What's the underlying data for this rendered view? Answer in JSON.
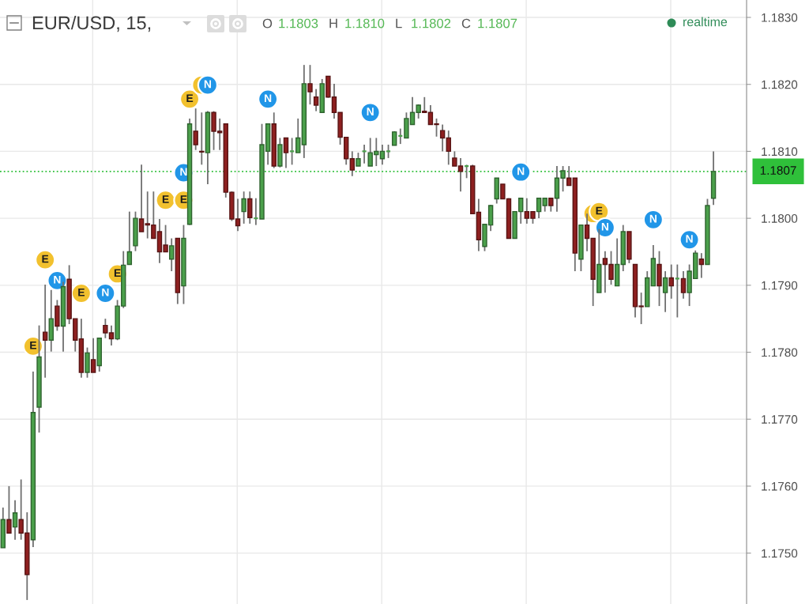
{
  "chart_data": {
    "type": "candlestick",
    "title": "EUR/USD, 15,",
    "categories": [
      null,
      null,
      null,
      null,
      null,
      null,
      null,
      null,
      null,
      null,
      null,
      null,
      null,
      null,
      null,
      null,
      null,
      null,
      null,
      null,
      null,
      null,
      null,
      null,
      null,
      null,
      null,
      null,
      null,
      null,
      null,
      null,
      null,
      null,
      null,
      null,
      null,
      null,
      null,
      null,
      null,
      null,
      null,
      null,
      null,
      null,
      null,
      null,
      null,
      null,
      null,
      null,
      null,
      null,
      null,
      null,
      null,
      null,
      null,
      null,
      null,
      null,
      null,
      null,
      null,
      null,
      null,
      null,
      null,
      null,
      null,
      null,
      null,
      null,
      null,
      null,
      null,
      null,
      null,
      null,
      null,
      null,
      null,
      null,
      null,
      null,
      null,
      null,
      null,
      null,
      null,
      null,
      null,
      null,
      null,
      null,
      null,
      null,
      null,
      null,
      null,
      null,
      null,
      null,
      null,
      null,
      null,
      null,
      null,
      null,
      null,
      null,
      null,
      null,
      null,
      null,
      null,
      null,
      null,
      null,
      null,
      null,
      null,
      null
    ],
    "ohlc": [
      [
        1.17508,
        1.17568,
        1.17508,
        1.1755
      ],
      [
        1.1755,
        1.176,
        1.1753,
        1.1753
      ],
      [
        1.17539,
        1.17579,
        1.1752,
        1.1756
      ],
      [
        1.1755,
        1.1761,
        1.1752,
        1.1753
      ],
      [
        1.1753,
        1.17561,
        1.1743,
        1.17468
      ],
      [
        1.1752,
        1.17771,
        1.17509,
        1.1771
      ],
      [
        1.17718,
        1.1784,
        1.1768,
        1.17793
      ],
      [
        1.1783,
        1.17901,
        1.17762,
        1.17818
      ],
      [
        1.17818,
        1.17893,
        1.17801,
        1.1785
      ],
      [
        1.17869,
        1.17878,
        1.17832,
        1.17839
      ],
      [
        1.17839,
        1.17905,
        1.17801,
        1.17898
      ],
      [
        1.17909,
        1.1793,
        1.17842,
        1.1785
      ],
      [
        1.1785,
        1.1785,
        1.17801,
        1.17818
      ],
      [
        1.1782,
        1.1785,
        1.17762,
        1.1777
      ],
      [
        1.1777,
        1.17807,
        1.17762,
        1.17799
      ],
      [
        1.17789,
        1.17821,
        1.1777,
        1.1777
      ],
      [
        1.1778,
        1.17821,
        1.17771,
        1.17821
      ],
      [
        1.1784,
        1.1785,
        1.17821,
        1.17829
      ],
      [
        1.17829,
        1.1784,
        1.1781,
        1.1782
      ],
      [
        1.1782,
        1.17878,
        1.17818,
        1.17869
      ],
      [
        1.17869,
        1.17951,
        1.17866,
        1.1793
      ],
      [
        1.17931,
        1.1801,
        1.17931,
        1.1795
      ],
      [
        1.17959,
        1.1801,
        1.17951,
        1.18
      ],
      [
        1.17999,
        1.1808,
        1.1798,
        1.1798
      ],
      [
        1.17992,
        1.1804,
        1.1797,
        1.1799
      ],
      [
        1.1799,
        1.1804,
        1.1797,
        1.1797
      ],
      [
        1.1798,
        1.17999,
        1.17933,
        1.1795
      ],
      [
        1.1796,
        1.1799,
        1.1795,
        1.1795
      ],
      [
        1.17939,
        1.1797,
        1.17921,
        1.17959
      ],
      [
        1.1797,
        1.1797,
        1.17872,
        1.17889
      ],
      [
        1.17899,
        1.1799,
        1.17872,
        1.1797
      ],
      [
        1.17991,
        1.18149,
        1.1799,
        1.18141
      ],
      [
        1.1813,
        1.18164,
        1.18102,
        1.1811
      ],
      [
        1.181,
        1.18158,
        1.1808,
        1.18099
      ],
      [
        1.18098,
        1.1816,
        1.18051,
        1.18158
      ],
      [
        1.18158,
        1.1816,
        1.18102,
        1.1813
      ],
      [
        1.1813,
        1.18149,
        1.18102,
        1.18128
      ],
      [
        1.18141,
        1.18141,
        1.18031,
        1.18039
      ],
      [
        1.18039,
        1.1804,
        1.17996,
        1.17999
      ],
      [
        1.17999,
        1.18029,
        1.17981,
        1.17989
      ],
      [
        1.1801,
        1.1804,
        1.17992,
        1.18029
      ],
      [
        1.18029,
        1.1804,
        1.17992,
        1.18001
      ],
      [
        1.18,
        1.1803,
        1.1799,
        1.18
      ],
      [
        1.17999,
        1.18141,
        1.17999,
        1.1811
      ],
      [
        1.181,
        1.18141,
        1.1808,
        1.18141
      ],
      [
        1.18141,
        1.18158,
        1.18075,
        1.18078
      ],
      [
        1.18078,
        1.1812,
        1.18076,
        1.1811
      ],
      [
        1.1812,
        1.1812,
        1.18075,
        1.18098
      ],
      [
        1.181,
        1.1812,
        1.1808,
        1.181
      ],
      [
        1.18098,
        1.18149,
        1.18098,
        1.1812
      ],
      [
        1.1811,
        1.18229,
        1.1809,
        1.18201
      ],
      [
        1.18201,
        1.18229,
        1.1817,
        1.18189
      ],
      [
        1.18181,
        1.18193,
        1.1816,
        1.18169
      ],
      [
        1.18158,
        1.18208,
        1.18158,
        1.18201
      ],
      [
        1.18212,
        1.18212,
        1.1818,
        1.18181
      ],
      [
        1.18181,
        1.18201,
        1.18149,
        1.18158
      ],
      [
        1.18158,
        1.18158,
        1.1811,
        1.18121
      ],
      [
        1.18121,
        1.18121,
        1.1808,
        1.18089
      ],
      [
        1.18089,
        1.181,
        1.18063,
        1.18072
      ],
      [
        1.18078,
        1.18098,
        1.18078,
        1.18089
      ],
      [
        1.181,
        1.1811,
        1.18082,
        1.181
      ],
      [
        1.18078,
        1.1812,
        1.18078,
        1.18098
      ],
      [
        1.18095,
        1.1812,
        1.18078,
        1.181
      ],
      [
        1.18089,
        1.1811,
        1.1808,
        1.181
      ],
      [
        1.181,
        1.1811,
        1.1809,
        1.181
      ],
      [
        1.18109,
        1.1813,
        1.18109,
        1.18129
      ],
      [
        1.18123,
        1.18134,
        1.18111,
        1.18123
      ],
      [
        1.1812,
        1.18158,
        1.1812,
        1.18149
      ],
      [
        1.1814,
        1.18181,
        1.1814,
        1.18158
      ],
      [
        1.18158,
        1.1817,
        1.18149,
        1.18169
      ],
      [
        1.1816,
        1.18181,
        1.18158,
        1.18158
      ],
      [
        1.18158,
        1.18169,
        1.1814,
        1.1814
      ],
      [
        1.18141,
        1.18149,
        1.18122,
        1.1814
      ],
      [
        1.18131,
        1.1814,
        1.181,
        1.1812
      ],
      [
        1.1812,
        1.18131,
        1.1808,
        1.181
      ],
      [
        1.1809,
        1.181,
        1.18078,
        1.18078
      ],
      [
        1.18078,
        1.1809,
        1.1804,
        1.1807
      ],
      [
        1.18078,
        1.1808,
        1.1806,
        1.18078
      ],
      [
        1.18078,
        1.1808,
        1.18007,
        1.18007
      ],
      [
        1.18009,
        1.18029,
        1.17951,
        1.17968
      ],
      [
        1.17958,
        1.17991,
        1.17951,
        1.17991
      ],
      [
        1.1799,
        1.1802,
        1.17981,
        1.18019
      ],
      [
        1.18029,
        1.1806,
        1.18022,
        1.1806
      ],
      [
        1.18051,
        1.18051,
        1.18029,
        1.18029
      ],
      [
        1.18029,
        1.1803,
        1.1797,
        1.1797
      ],
      [
        1.1797,
        1.1801,
        1.1797,
        1.1801
      ],
      [
        1.1801,
        1.1803,
        1.17992,
        1.1803
      ],
      [
        1.1801,
        1.1803,
        1.17992,
        1.18
      ],
      [
        1.1801,
        1.1801,
        1.17992,
        1.18
      ],
      [
        1.1801,
        1.1803,
        1.18,
        1.1803
      ],
      [
        1.18019,
        1.1803,
        1.1801,
        1.1803
      ],
      [
        1.1803,
        1.1803,
        1.1801,
        1.18019
      ],
      [
        1.1803,
        1.18078,
        1.1801,
        1.1806
      ],
      [
        1.1806,
        1.18078,
        1.1804,
        1.18071
      ],
      [
        1.1806,
        1.18078,
        1.18049,
        1.18049
      ],
      [
        1.1806,
        1.1806,
        1.17921,
        1.17948
      ],
      [
        1.17939,
        1.1799,
        1.17921,
        1.1799
      ],
      [
        1.1799,
        1.18007,
        1.17951,
        1.1797
      ],
      [
        1.1797,
        1.1797,
        1.17869,
        1.17909
      ],
      [
        1.17889,
        1.17984,
        1.17889,
        1.17931
      ],
      [
        1.1794,
        1.17951,
        1.17889,
        1.17931
      ],
      [
        1.17931,
        1.17951,
        1.17901,
        1.17909
      ],
      [
        1.17899,
        1.1797,
        1.17899,
        1.17931
      ],
      [
        1.17931,
        1.1799,
        1.17921,
        1.1798
      ],
      [
        1.1798,
        1.1798,
        1.17933,
        1.17939
      ],
      [
        1.17931,
        1.17931,
        1.17852,
        1.17868
      ],
      [
        1.17869,
        1.17889,
        1.17842,
        1.17868
      ],
      [
        1.17868,
        1.17921,
        1.17868,
        1.17911
      ],
      [
        1.17899,
        1.1796,
        1.17899,
        1.1794
      ],
      [
        1.17931,
        1.17951,
        1.17869,
        1.17899
      ],
      [
        1.17889,
        1.17921,
        1.1786,
        1.17911
      ],
      [
        1.17911,
        1.17931,
        1.1788,
        1.17899
      ],
      [
        1.1791,
        1.17931,
        1.17852,
        1.1791
      ],
      [
        1.1791,
        1.17921,
        1.1788,
        1.17889
      ],
      [
        1.17889,
        1.17931,
        1.17869,
        1.17921
      ],
      [
        1.1791,
        1.17952,
        1.1791,
        1.17948
      ],
      [
        1.17939,
        1.17948,
        1.17911,
        1.17931
      ],
      [
        1.17931,
        1.18029,
        1.17931,
        1.18019
      ],
      [
        1.1803,
        1.181,
        1.1802,
        1.1807
      ],
      null,
      null,
      null,
      null,
      null
    ],
    "colors": [
      "#4ba04b",
      "#8e2020",
      "#4ba04b",
      "#8e2020",
      "#8e2020",
      "#4ba04b",
      "#4ba04b",
      "#8e2020",
      "#4ba04b",
      "#8e2020",
      "#4ba04b",
      "#8e2020",
      "#8e2020",
      "#8e2020",
      "#4ba04b",
      "#8e2020",
      "#4ba04b",
      "#8e2020",
      "#8e2020",
      "#4ba04b",
      "#4ba04b",
      "#4ba04b",
      "#4ba04b",
      "#8e2020",
      "#8e2020",
      "#8e2020",
      "#8e2020",
      "#8e2020",
      "#4ba04b",
      "#8e2020",
      "#4ba04b",
      "#4ba04b",
      "#8e2020",
      "#8e2020",
      "#4ba04b",
      "#8e2020",
      "#8e2020",
      "#8e2020",
      "#8e2020",
      "#8e2020",
      "#4ba04b",
      "#8e2020",
      "#4ba04b",
      "#4ba04b",
      "#4ba04b",
      "#8e2020",
      "#4ba04b",
      "#8e2020",
      "#4ba04b",
      "#4ba04b",
      "#4ba04b",
      "#8e2020",
      "#8e2020",
      "#4ba04b",
      "#8e2020",
      "#8e2020",
      "#8e2020",
      "#8e2020",
      "#8e2020",
      "#4ba04b",
      "#4ba04b",
      "#4ba04b",
      "#4ba04b",
      "#4ba04b",
      "#4ba04b",
      "#4ba04b",
      "#4ba04b",
      "#4ba04b",
      "#4ba04b",
      "#4ba04b",
      "#8e2020",
      "#8e2020",
      "#8e2020",
      "#8e2020",
      "#8e2020",
      "#8e2020",
      "#8e2020",
      "#4ba04b",
      "#8e2020",
      "#8e2020",
      "#4ba04b",
      "#4ba04b",
      "#4ba04b",
      "#8e2020",
      "#8e2020",
      "#4ba04b",
      "#4ba04b",
      "#8e2020",
      "#8e2020",
      "#4ba04b",
      "#4ba04b",
      "#8e2020",
      "#4ba04b",
      "#4ba04b",
      "#8e2020",
      "#8e2020",
      "#4ba04b",
      "#8e2020",
      "#8e2020",
      "#4ba04b",
      "#8e2020",
      "#8e2020",
      "#4ba04b",
      "#4ba04b",
      "#8e2020",
      "#8e2020",
      "#8e2020",
      "#4ba04b",
      "#4ba04b",
      "#8e2020",
      "#4ba04b",
      "#8e2020",
      "#4ba04b",
      "#8e2020",
      "#4ba04b",
      "#4ba04b",
      "#8e2020",
      "#4ba04b",
      "#4ba04b",
      null,
      null,
      null,
      null,
      null
    ],
    "series": [
      {
        "type": "scatter",
        "color": "#f2c12e",
        "values": [
          null,
          null,
          null,
          null,
          null,
          1.17809,
          null,
          1.17938,
          null,
          null,
          null,
          null,
          null,
          1.17888,
          null,
          null,
          null,
          null,
          null,
          1.17917,
          null,
          null,
          null,
          null,
          null,
          null,
          null,
          1.18027,
          null,
          null,
          1.18027,
          1.18178,
          null,
          1.18199,
          null,
          null,
          null,
          null,
          null,
          null,
          null,
          null,
          null,
          null,
          null,
          null,
          null,
          null,
          null,
          null,
          null,
          null,
          null,
          null,
          null,
          null,
          null,
          null,
          null,
          null,
          null,
          null,
          null,
          null,
          null,
          null,
          null,
          null,
          null,
          null,
          null,
          null,
          null,
          null,
          null,
          null,
          null,
          null,
          null,
          null,
          null,
          null,
          null,
          null,
          null,
          null,
          null,
          null,
          null,
          null,
          null,
          null,
          null,
          null,
          null,
          null,
          null,
          null,
          1.18007,
          1.1801,
          null,
          null,
          null,
          null,
          null,
          null,
          null,
          null,
          null,
          null,
          null,
          null,
          null,
          null,
          null,
          null,
          null,
          null,
          null,
          null,
          null,
          null,
          null,
          null
        ],
        "value_labels": [
          null,
          null,
          null,
          null,
          null,
          "E",
          null,
          "E",
          null,
          null,
          null,
          null,
          null,
          "E",
          null,
          null,
          null,
          null,
          null,
          "E",
          null,
          null,
          null,
          null,
          null,
          null,
          null,
          "E",
          null,
          null,
          "E",
          "E",
          null,
          null,
          null,
          null,
          null,
          null,
          null,
          null,
          null,
          null,
          null,
          null,
          null,
          null,
          null,
          null,
          null,
          null,
          null,
          null,
          null,
          null,
          null,
          null,
          null,
          null,
          null,
          null,
          null,
          null,
          null,
          null,
          null,
          null,
          null,
          null,
          null,
          null,
          null,
          null,
          null,
          null,
          null,
          null,
          null,
          null,
          null,
          null,
          null,
          null,
          null,
          null,
          null,
          null,
          null,
          null,
          null,
          null,
          null,
          null,
          null,
          null,
          null,
          null,
          null,
          null,
          null,
          "E",
          null,
          null,
          null,
          null,
          null,
          null,
          null,
          null,
          null,
          null,
          null,
          null,
          null,
          null,
          null,
          null,
          null,
          null,
          null,
          null,
          null,
          null,
          null,
          null
        ]
      },
      {
        "type": "scatter",
        "color": "#2196e8",
        "values": [
          null,
          null,
          null,
          null,
          null,
          null,
          null,
          null,
          null,
          1.17907,
          null,
          null,
          null,
          null,
          null,
          null,
          null,
          1.17888,
          null,
          null,
          null,
          null,
          null,
          null,
          null,
          null,
          null,
          null,
          null,
          null,
          1.18068,
          null,
          null,
          null,
          1.18199,
          null,
          null,
          null,
          null,
          null,
          null,
          null,
          null,
          null,
          1.18178,
          null,
          null,
          null,
          null,
          null,
          null,
          null,
          null,
          null,
          null,
          null,
          null,
          null,
          null,
          null,
          null,
          1.18158,
          null,
          null,
          null,
          null,
          null,
          null,
          null,
          null,
          null,
          null,
          null,
          null,
          null,
          null,
          null,
          null,
          null,
          null,
          null,
          null,
          null,
          null,
          null,
          null,
          1.18069,
          null,
          null,
          null,
          null,
          null,
          null,
          null,
          null,
          null,
          null,
          null,
          null,
          null,
          1.17986,
          null,
          null,
          null,
          null,
          null,
          null,
          null,
          1.17998,
          null,
          null,
          null,
          null,
          null,
          1.17968,
          null,
          null,
          null,
          null,
          null,
          null,
          null,
          null,
          null
        ],
        "value_labels": [
          null,
          null,
          null,
          null,
          null,
          null,
          null,
          null,
          null,
          "N",
          null,
          null,
          null,
          null,
          null,
          null,
          null,
          "N",
          null,
          null,
          null,
          null,
          null,
          null,
          null,
          null,
          null,
          null,
          null,
          null,
          "N",
          null,
          null,
          null,
          "N",
          null,
          null,
          null,
          null,
          null,
          null,
          null,
          null,
          null,
          "N",
          null,
          null,
          null,
          null,
          null,
          null,
          null,
          null,
          null,
          null,
          null,
          null,
          null,
          null,
          null,
          null,
          "N",
          null,
          null,
          null,
          null,
          null,
          null,
          null,
          null,
          null,
          null,
          null,
          null,
          null,
          null,
          null,
          null,
          null,
          null,
          null,
          null,
          null,
          null,
          null,
          null,
          "N",
          null,
          null,
          null,
          null,
          null,
          null,
          null,
          null,
          null,
          null,
          null,
          null,
          null,
          "N",
          null,
          null,
          null,
          null,
          null,
          null,
          null,
          "N",
          null,
          null,
          null,
          null,
          null,
          "N",
          null,
          null,
          null,
          null,
          null,
          null,
          null,
          null,
          null
        ]
      }
    ],
    "marker": "circle",
    "ylim": [
      1.17424,
      1.18326
    ],
    "yticks": [
      {
        "value": 1.175,
        "label": "1.1750"
      },
      {
        "value": 1.176,
        "label": "1.1760"
      },
      {
        "value": 1.177,
        "label": "1.1770"
      },
      {
        "value": 1.178,
        "label": "1.1780"
      },
      {
        "value": 1.179,
        "label": "1.1790"
      },
      {
        "value": 1.18,
        "label": "1.1800"
      },
      {
        "value": 1.181,
        "label": "1.1810"
      },
      {
        "value": 1.182,
        "label": "1.1820"
      },
      {
        "value": 1.183,
        "label": "1.1830"
      }
    ],
    "grid": true,
    "tick_labels": "y",
    "ref_lines": [
      {
        "axis": "y",
        "value": 1.1807,
        "label": "1.1807",
        "color": "#2fc03a",
        "line_style": "dotted"
      }
    ],
    "annotations": [
      "O 1.1803",
      "H 1.1810",
      "L 1.1802",
      "C 1.1807",
      "realtime"
    ]
  }
}
